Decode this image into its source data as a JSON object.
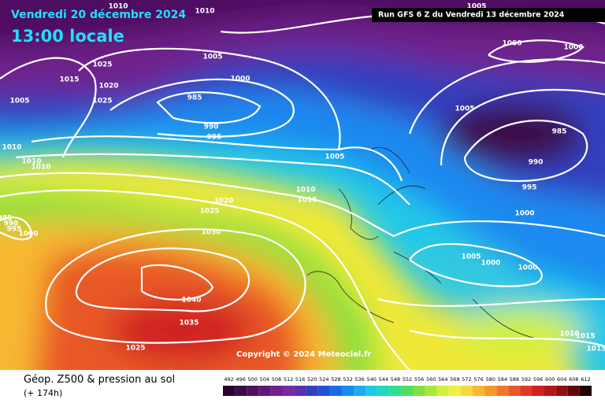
{
  "header": {
    "date": "Vendredi 20 décembre 2024",
    "time": "13:00 locale",
    "run": "Run GFS 6 Z du Vendredi 13 décembre 2024"
  },
  "isobar_labels": [
    1010,
    1010,
    1005,
    1025,
    1005,
    1000,
    1000,
    1000,
    1015,
    1020,
    1005,
    1025,
    985,
    1005,
    990,
    995,
    985,
    1010,
    1010,
    1010,
    1005,
    990,
    995,
    1010,
    1015,
    1020,
    1025,
    1000,
    1030,
    985,
    990,
    995,
    1000,
    1005,
    1000,
    1000,
    1040,
    1035,
    1010,
    1015,
    1025,
    1015
  ],
  "copyright": "Copyright © 2024 Meteociel.fr",
  "footer": {
    "title": "Géop. Z500 & pression au sol",
    "subtitle": "(+ 174h)"
  },
  "legend": {
    "ticks": [
      492,
      496,
      500,
      504,
      508,
      512,
      516,
      520,
      524,
      528,
      532,
      536,
      540,
      544,
      548,
      552,
      556,
      560,
      564,
      568,
      572,
      576,
      580,
      584,
      588,
      592,
      596,
      600,
      604,
      608,
      612
    ],
    "colors": [
      "#2a0030",
      "#3d0a4a",
      "#4e1060",
      "#601878",
      "#70208c",
      "#7a2aa0",
      "#5a30b0",
      "#3040c0",
      "#2050d8",
      "#1a6ae8",
      "#1a8af0",
      "#20a8f0",
      "#20c8e8",
      "#20d8c0",
      "#30e090",
      "#50e060",
      "#80e040",
      "#a8e838",
      "#d0f040",
      "#f0f040",
      "#f8d838",
      "#f8b830",
      "#f89828",
      "#f07828",
      "#e85828",
      "#e03828",
      "#d02020",
      "#b01818",
      "#901010",
      "#600808",
      "#200000"
    ]
  }
}
